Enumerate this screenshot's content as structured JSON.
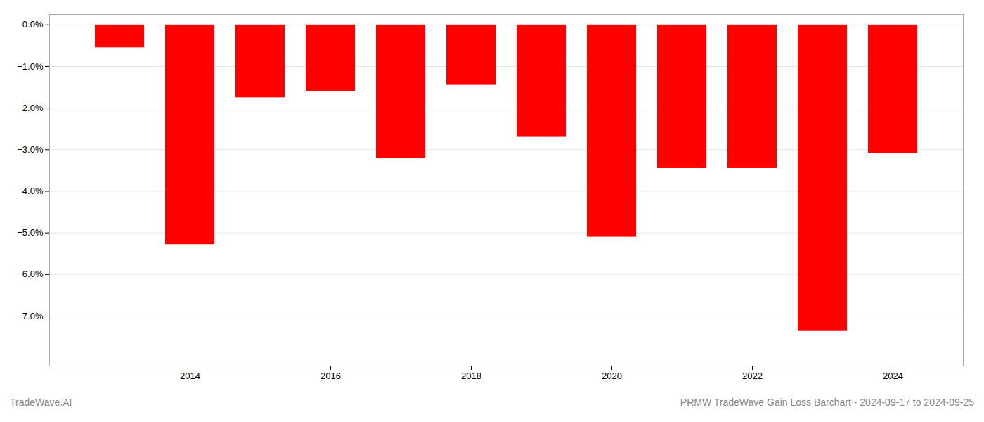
{
  "chart_data": {
    "type": "bar",
    "x": [
      2013,
      2014,
      2015,
      2016,
      2017,
      2018,
      2019,
      2020,
      2021,
      2022,
      2023,
      2024
    ],
    "values": [
      -0.55,
      -5.28,
      -1.75,
      -1.6,
      -3.2,
      -1.45,
      -2.7,
      -5.1,
      -3.45,
      -3.45,
      -7.35,
      -3.08
    ],
    "color": "#ff0000",
    "xlim": [
      2012,
      2025
    ],
    "xticks": [
      2014,
      2016,
      2018,
      2020,
      2022,
      2024
    ],
    "ylim": [
      -8.2,
      0.25
    ],
    "yticks": [
      {
        "value": 0.0,
        "label": "0.0%"
      },
      {
        "value": -1.0,
        "label": "−1.0%"
      },
      {
        "value": -2.0,
        "label": "−2.0%"
      },
      {
        "value": -3.0,
        "label": "−3.0%"
      },
      {
        "value": -4.0,
        "label": "−4.0%"
      },
      {
        "value": -5.0,
        "label": "−5.0%"
      },
      {
        "value": -6.0,
        "label": "−6.0%"
      },
      {
        "value": -7.0,
        "label": "−7.0%"
      }
    ],
    "grid": true,
    "annotations": [
      "TradeWave.AI",
      "PRMW TradeWave Gain Loss Barchart - 2024-09-17 to 2024-09-25"
    ]
  }
}
